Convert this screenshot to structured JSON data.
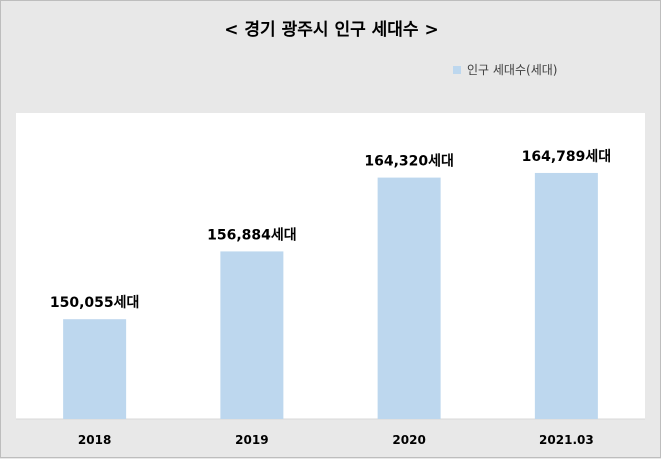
{
  "chart_data": {
    "type": "bar",
    "title": "< 경기 광주시 인구 세대수 >",
    "categories": [
      "2018",
      "2019",
      "2020",
      "2021.03"
    ],
    "series": [
      {
        "name": "인구 세대수(세대)",
        "values": [
          150055,
          156884,
          164320,
          164789
        ],
        "data_labels": [
          "150,055세대",
          "156,884세대",
          "164,320세대",
          "164,789세대"
        ],
        "color": "#bdd7ee"
      }
    ],
    "ylim": [
      140000,
      167000
    ],
    "legend_position": "top-right",
    "grid": false
  }
}
